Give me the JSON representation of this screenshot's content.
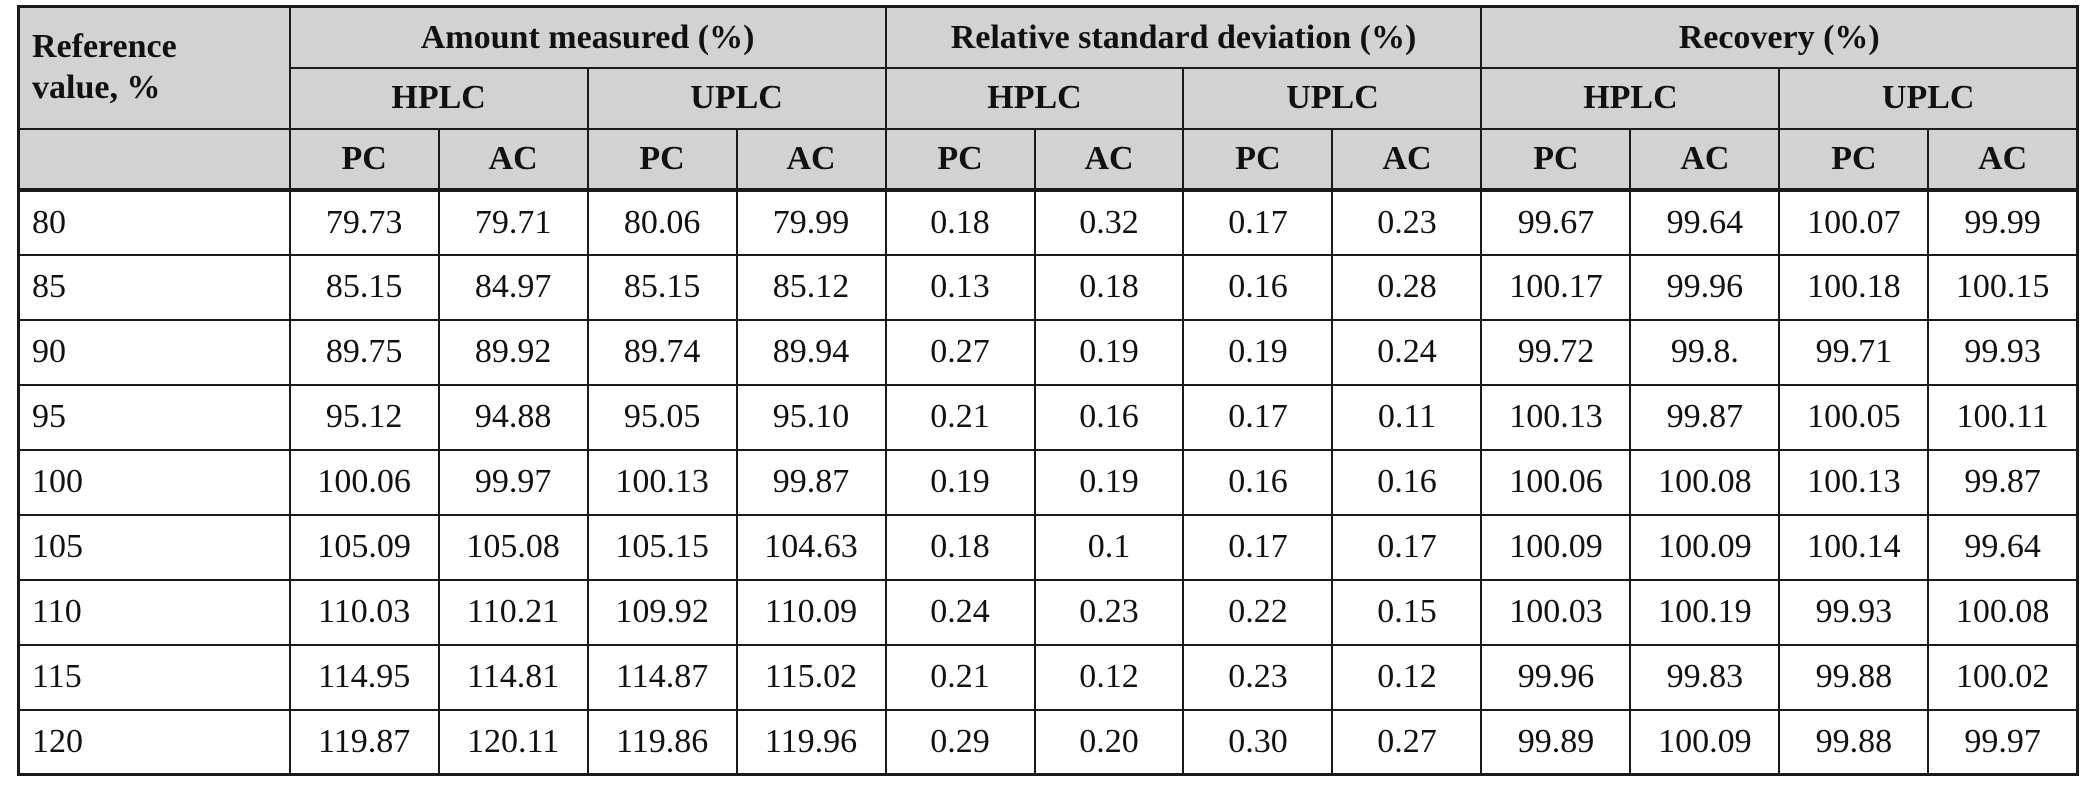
{
  "header": {
    "ref_label_line1": "Reference",
    "ref_label_line2": "value, %",
    "groups": [
      "Amount measured (%)",
      "Relative standard deviation (%)",
      "Recovery (%)"
    ],
    "methods": [
      "HPLC",
      "UPLC",
      "HPLC",
      "UPLC",
      "HPLC",
      "UPLC"
    ],
    "sub": [
      "PC",
      "AC",
      "PC",
      "AC",
      "PC",
      "AC",
      "PC",
      "AC",
      "PC",
      "AC",
      "PC",
      "AC"
    ]
  },
  "rows": [
    [
      "80",
      "79.73",
      "79.71",
      "80.06",
      "79.99",
      "0.18",
      "0.32",
      "0.17",
      "0.23",
      "99.67",
      "99.64",
      "100.07",
      "99.99"
    ],
    [
      "85",
      "85.15",
      "84.97",
      "85.15",
      "85.12",
      "0.13",
      "0.18",
      "0.16",
      "0.28",
      "100.17",
      "99.96",
      "100.18",
      "100.15"
    ],
    [
      "90",
      "89.75",
      "89.92",
      "89.74",
      "89.94",
      "0.27",
      "0.19",
      "0.19",
      "0.24",
      "99.72",
      "99.8.",
      "99.71",
      "99.93"
    ],
    [
      "95",
      "95.12",
      "94.88",
      "95.05",
      "95.10",
      "0.21",
      "0.16",
      "0.17",
      "0.11",
      "100.13",
      "99.87",
      "100.05",
      "100.11"
    ],
    [
      "100",
      "100.06",
      "99.97",
      "100.13",
      "99.87",
      "0.19",
      "0.19",
      "0.16",
      "0.16",
      "100.06",
      "100.08",
      "100.13",
      "99.87"
    ],
    [
      "105",
      "105.09",
      "105.08",
      "105.15",
      "104.63",
      "0.18",
      "0.1",
      "0.17",
      "0.17",
      "100.09",
      "100.09",
      "100.14",
      "99.64"
    ],
    [
      "110",
      "110.03",
      "110.21",
      "109.92",
      "110.09",
      "0.24",
      "0.23",
      "0.22",
      "0.15",
      "100.03",
      "100.19",
      "99.93",
      "100.08"
    ],
    [
      "115",
      "114.95",
      "114.81",
      "114.87",
      "115.02",
      "0.21",
      "0.12",
      "0.23",
      "0.12",
      "99.96",
      "99.83",
      "99.88",
      "100.02"
    ],
    [
      "120",
      "119.87",
      "120.11",
      "119.86",
      "119.96",
      "0.29",
      "0.20",
      "0.30",
      "0.27",
      "99.89",
      "100.09",
      "99.88",
      "99.97"
    ]
  ]
}
